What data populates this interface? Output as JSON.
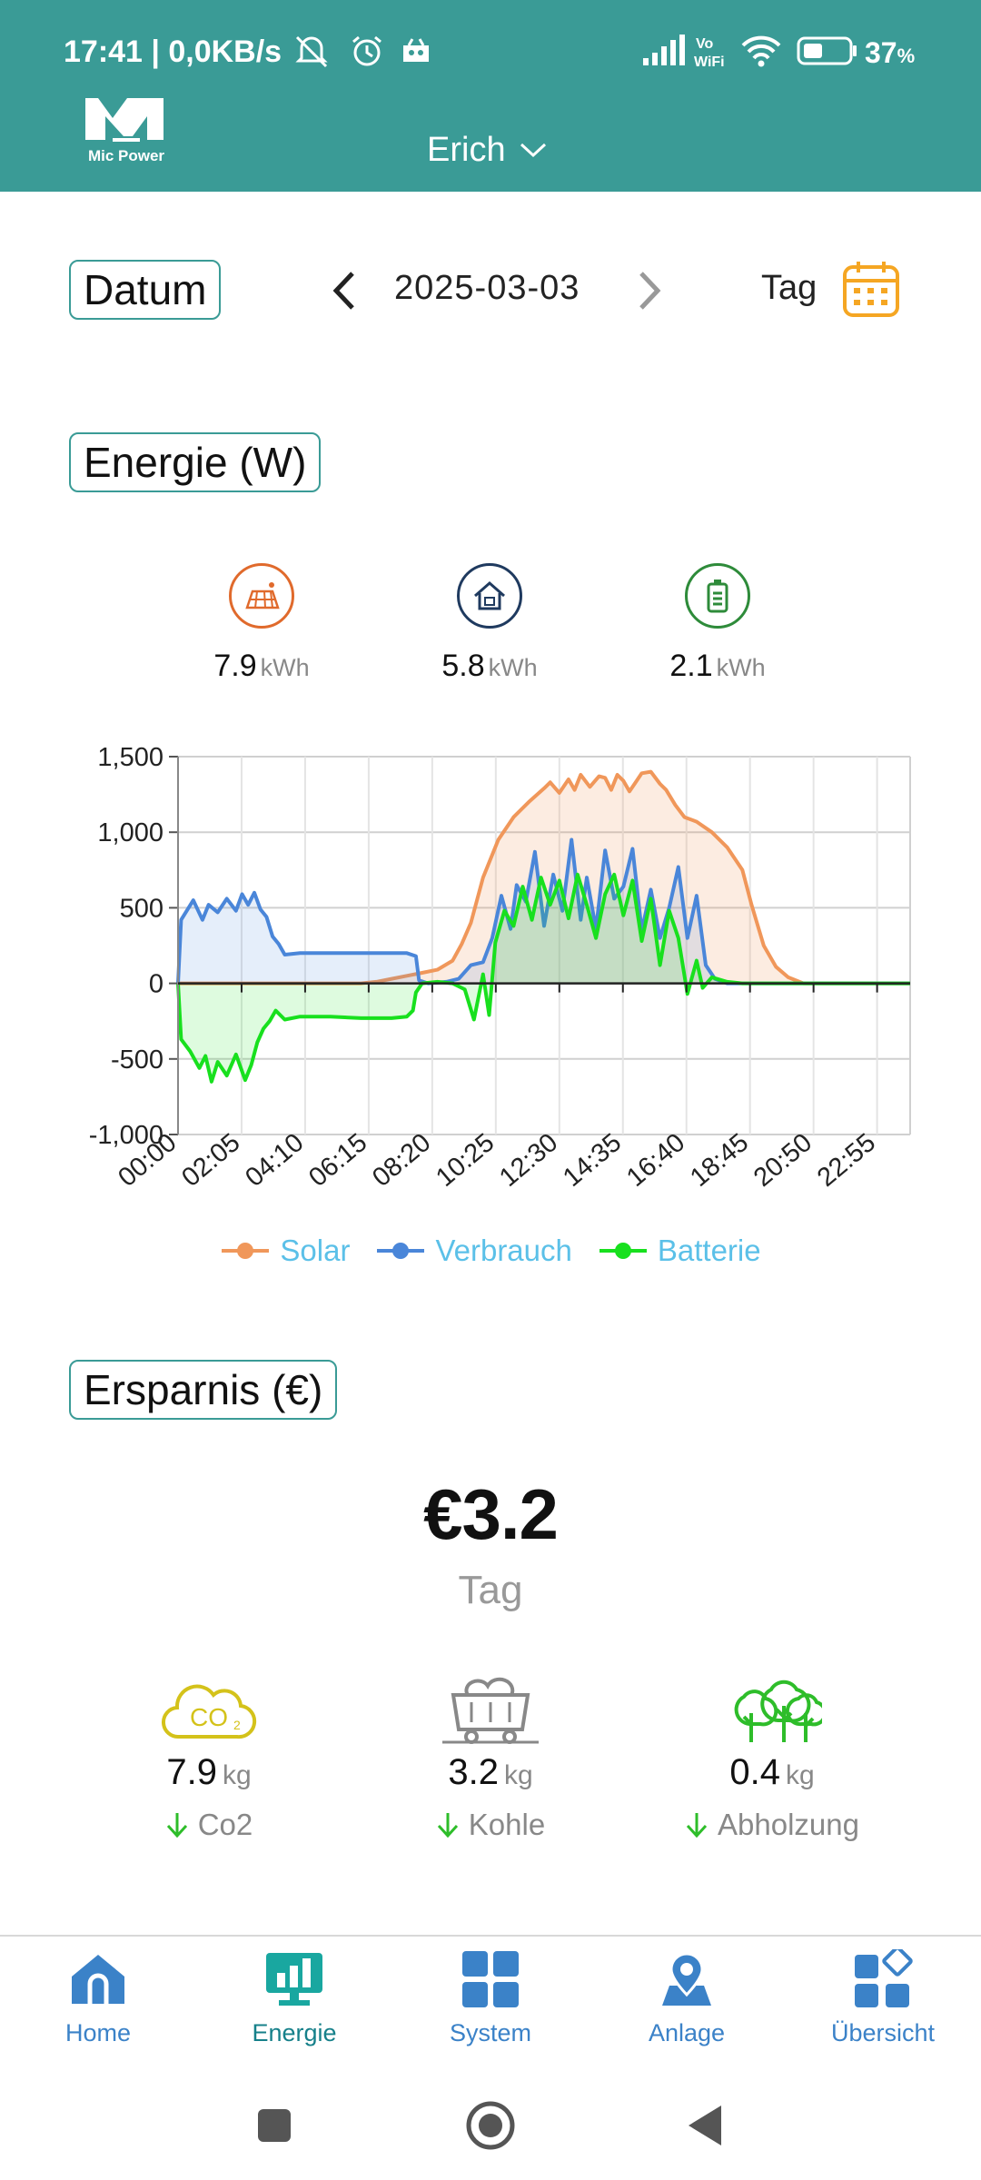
{
  "status_bar": {
    "time_speed": "17:41 | 0,0KB/s",
    "battery_pct": "37",
    "battery_pct_suffix": "%"
  },
  "header": {
    "logo_text": "Mic Power",
    "plant_name": "Erich"
  },
  "date_bar": {
    "label": "Datum",
    "date": "2025-03-03",
    "period": "Tag"
  },
  "energy": {
    "title": "Energie (W)",
    "stats": [
      {
        "icon": "solar-panel-icon",
        "value": "7.9",
        "unit": "kWh",
        "color": "#e06a2c"
      },
      {
        "icon": "house-consumption-icon",
        "value": "5.8",
        "unit": "kWh",
        "color": "#1f3a5f"
      },
      {
        "icon": "battery-icon",
        "value": "2.1",
        "unit": "kWh",
        "color": "#2e8b3a"
      }
    ]
  },
  "chart_data": {
    "type": "area",
    "x_labels": [
      "00:00",
      "02:05",
      "04:10",
      "06:15",
      "08:20",
      "10:25",
      "12:30",
      "14:35",
      "16:40",
      "18:45",
      "20:50",
      "22:55"
    ],
    "y_ticks": [
      "1,500",
      "1,000",
      "500",
      "0",
      "-500",
      "-1,000"
    ],
    "ylim": [
      -1000,
      1500
    ],
    "x_range_hours": [
      0,
      24
    ],
    "grid": true,
    "legend_position": "bottom",
    "series": [
      {
        "name": "Solar",
        "color": "#f0975a",
        "points": [
          [
            0,
            0
          ],
          [
            6,
            0
          ],
          [
            6.5,
            10
          ],
          [
            7,
            30
          ],
          [
            7.5,
            50
          ],
          [
            8,
            70
          ],
          [
            8.5,
            90
          ],
          [
            9,
            150
          ],
          [
            9.3,
            260
          ],
          [
            9.6,
            400
          ],
          [
            10,
            700
          ],
          [
            10.5,
            950
          ],
          [
            11,
            1100
          ],
          [
            11.5,
            1200
          ],
          [
            12,
            1290
          ],
          [
            12.2,
            1330
          ],
          [
            12.5,
            1260
          ],
          [
            12.8,
            1350
          ],
          [
            13,
            1280
          ],
          [
            13.2,
            1380
          ],
          [
            13.5,
            1300
          ],
          [
            13.8,
            1370
          ],
          [
            14,
            1360
          ],
          [
            14.2,
            1280
          ],
          [
            14.4,
            1380
          ],
          [
            14.6,
            1340
          ],
          [
            14.8,
            1270
          ],
          [
            15,
            1330
          ],
          [
            15.2,
            1390
          ],
          [
            15.5,
            1400
          ],
          [
            15.8,
            1320
          ],
          [
            16,
            1280
          ],
          [
            16.3,
            1180
          ],
          [
            16.6,
            1100
          ],
          [
            17,
            1070
          ],
          [
            17.5,
            1000
          ],
          [
            18,
            900
          ],
          [
            18.5,
            750
          ],
          [
            18.8,
            520
          ],
          [
            19.2,
            250
          ],
          [
            19.6,
            110
          ],
          [
            20,
            40
          ],
          [
            20.5,
            0
          ],
          [
            24,
            0
          ]
        ]
      },
      {
        "name": "Verbrauch",
        "color": "#4a86d9",
        "points": [
          [
            0,
            0
          ],
          [
            0.1,
            420
          ],
          [
            0.5,
            550
          ],
          [
            0.8,
            420
          ],
          [
            1,
            520
          ],
          [
            1.3,
            470
          ],
          [
            1.6,
            560
          ],
          [
            1.9,
            480
          ],
          [
            2.1,
            590
          ],
          [
            2.3,
            520
          ],
          [
            2.5,
            600
          ],
          [
            2.7,
            490
          ],
          [
            2.9,
            440
          ],
          [
            3.1,
            310
          ],
          [
            3.3,
            260
          ],
          [
            3.5,
            190
          ],
          [
            4,
            200
          ],
          [
            5,
            200
          ],
          [
            6,
            200
          ],
          [
            7,
            200
          ],
          [
            7.5,
            200
          ],
          [
            7.8,
            180
          ],
          [
            7.9,
            20
          ],
          [
            8.2,
            0
          ],
          [
            8.8,
            10
          ],
          [
            9.2,
            30
          ],
          [
            9.6,
            120
          ],
          [
            10,
            140
          ],
          [
            10.3,
            300
          ],
          [
            10.6,
            580
          ],
          [
            10.9,
            360
          ],
          [
            11.1,
            650
          ],
          [
            11.4,
            540
          ],
          [
            11.7,
            870
          ],
          [
            12,
            380
          ],
          [
            12.3,
            720
          ],
          [
            12.6,
            480
          ],
          [
            12.9,
            950
          ],
          [
            13.2,
            420
          ],
          [
            13.4,
            700
          ],
          [
            13.7,
            360
          ],
          [
            14,
            880
          ],
          [
            14.3,
            560
          ],
          [
            14.6,
            640
          ],
          [
            14.9,
            890
          ],
          [
            15.2,
            350
          ],
          [
            15.5,
            620
          ],
          [
            15.8,
            300
          ],
          [
            16.1,
            500
          ],
          [
            16.4,
            770
          ],
          [
            16.7,
            300
          ],
          [
            17,
            580
          ],
          [
            17.3,
            120
          ],
          [
            17.6,
            30
          ],
          [
            18,
            0
          ],
          [
            24,
            0
          ]
        ]
      },
      {
        "name": "Batterie",
        "color": "#18e01e",
        "points": [
          [
            0,
            0
          ],
          [
            0.1,
            -370
          ],
          [
            0.4,
            -450
          ],
          [
            0.7,
            -560
          ],
          [
            0.9,
            -480
          ],
          [
            1.1,
            -650
          ],
          [
            1.3,
            -520
          ],
          [
            1.6,
            -610
          ],
          [
            1.9,
            -470
          ],
          [
            2.2,
            -640
          ],
          [
            2.4,
            -540
          ],
          [
            2.6,
            -390
          ],
          [
            2.8,
            -300
          ],
          [
            3.0,
            -250
          ],
          [
            3.2,
            -180
          ],
          [
            3.5,
            -240
          ],
          [
            4,
            -220
          ],
          [
            5,
            -220
          ],
          [
            6,
            -230
          ],
          [
            7,
            -230
          ],
          [
            7.5,
            -220
          ],
          [
            7.7,
            -180
          ],
          [
            7.8,
            -60
          ],
          [
            8,
            0
          ],
          [
            8.5,
            10
          ],
          [
            9,
            0
          ],
          [
            9.4,
            -40
          ],
          [
            9.7,
            -240
          ],
          [
            10,
            60
          ],
          [
            10.2,
            -210
          ],
          [
            10.4,
            270
          ],
          [
            10.7,
            480
          ],
          [
            11,
            380
          ],
          [
            11.3,
            640
          ],
          [
            11.6,
            420
          ],
          [
            11.9,
            700
          ],
          [
            12.2,
            520
          ],
          [
            12.5,
            680
          ],
          [
            12.8,
            430
          ],
          [
            13.1,
            720
          ],
          [
            13.4,
            520
          ],
          [
            13.7,
            300
          ],
          [
            14,
            590
          ],
          [
            14.3,
            720
          ],
          [
            14.6,
            450
          ],
          [
            14.9,
            680
          ],
          [
            15.2,
            280
          ],
          [
            15.5,
            560
          ],
          [
            15.8,
            120
          ],
          [
            16.1,
            480
          ],
          [
            16.4,
            300
          ],
          [
            16.7,
            -70
          ],
          [
            17,
            150
          ],
          [
            17.2,
            -30
          ],
          [
            17.5,
            40
          ],
          [
            18,
            10
          ],
          [
            18.5,
            0
          ],
          [
            24,
            0
          ]
        ]
      }
    ]
  },
  "savings": {
    "title": "Ersparnis (€)",
    "value": "€3.2",
    "period": "Tag",
    "items": [
      {
        "icon": "co2-cloud-icon",
        "value": "7.9",
        "unit": "kg",
        "label": "Co2",
        "color": "#d4c21a"
      },
      {
        "icon": "coal-cart-icon",
        "value": "3.2",
        "unit": "kg",
        "label": "Kohle",
        "color": "#888888"
      },
      {
        "icon": "trees-icon",
        "value": "0.4",
        "unit": "kg",
        "label": "Abholzung",
        "color": "#2ebd2a"
      }
    ]
  },
  "tabs": [
    {
      "label": "Home",
      "icon": "home-icon"
    },
    {
      "label": "Energie",
      "icon": "energy-monitor-icon",
      "active": true
    },
    {
      "label": "System",
      "icon": "system-grid-icon"
    },
    {
      "label": "Anlage",
      "icon": "location-pin-icon"
    },
    {
      "label": "Übersicht",
      "icon": "overview-grid-icon"
    }
  ],
  "colors": {
    "header": "#3a9b96",
    "tab_blue": "#3b82c8",
    "tab_active": "#16808a",
    "legend_text": "#5bc0e8",
    "calendar": "#f5a623"
  }
}
